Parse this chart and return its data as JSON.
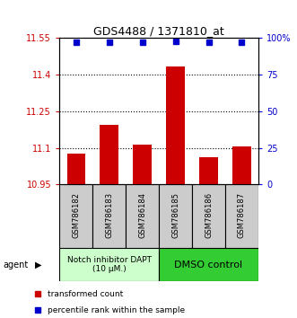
{
  "title": "GDS4488 / 1371810_at",
  "samples": [
    "GSM786182",
    "GSM786183",
    "GSM786184",
    "GSM786185",
    "GSM786186",
    "GSM786187"
  ],
  "bar_values": [
    11.075,
    11.195,
    11.115,
    11.435,
    11.06,
    11.105
  ],
  "percentile_values": [
    97,
    97,
    97,
    98,
    97,
    97
  ],
  "ylim_left": [
    10.95,
    11.55
  ],
  "ylim_right": [
    0,
    100
  ],
  "yticks_left": [
    10.95,
    11.1,
    11.25,
    11.4,
    11.55
  ],
  "ytick_labels_left": [
    "10.95",
    "11.1",
    "11.25",
    "11.4",
    "11.55"
  ],
  "yticks_right": [
    0,
    25,
    50,
    75,
    100
  ],
  "ytick_labels_right": [
    "0",
    "25",
    "50",
    "75",
    "100%"
  ],
  "bar_color": "#cc0000",
  "dot_color": "#0000cc",
  "bar_bottom": 10.95,
  "group1_label": "Notch inhibitor DAPT\n(10 μM.)",
  "group2_label": "DMSO control",
  "group1_color": "#ccffcc",
  "group2_color": "#33cc33",
  "group1_indices": [
    0,
    1,
    2
  ],
  "group2_indices": [
    3,
    4,
    5
  ],
  "agent_label": "agent",
  "legend_red_label": "transformed count",
  "legend_blue_label": "percentile rank within the sample",
  "hline_values": [
    11.1,
    11.25,
    11.4
  ]
}
